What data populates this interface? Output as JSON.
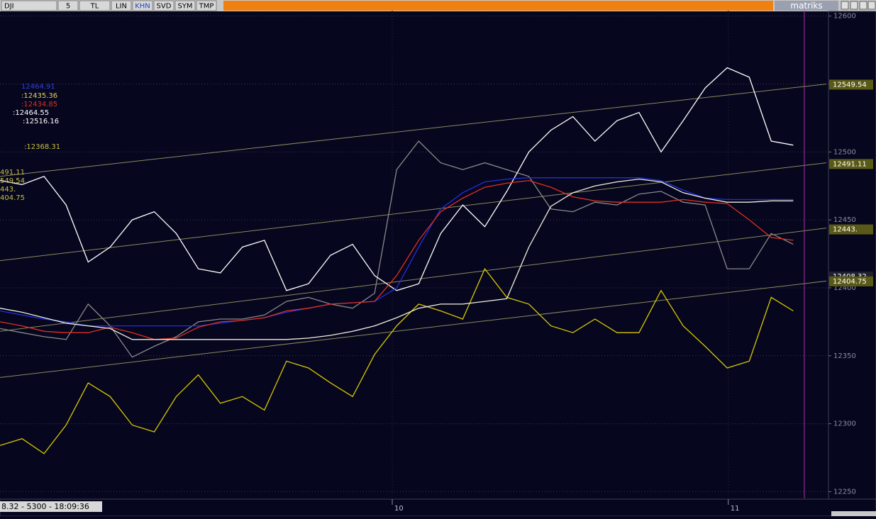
{
  "toolbar": {
    "buttons": [
      "DJI",
      "5",
      "TL",
      "LIN",
      "KHN",
      "SVD",
      "SYM",
      "TMP"
    ],
    "brand": "matriks"
  },
  "status": "8.32 - 5300 - 18:09:36",
  "readouts": [
    {
      "text": "12464.91",
      "color": "#3040e0"
    },
    {
      "text": ":12435.36",
      "color": "#e0d060"
    },
    {
      "text": ":12434.85",
      "color": "#e03020"
    },
    {
      "text": ":12464.55",
      "color": "#ffffff"
    },
    {
      "text": ":12516.16",
      "color": "#ffffff"
    },
    {
      "text": ":12368.31",
      "color": "#c8c040"
    },
    {
      "text": "491.11",
      "color": "#c8c040"
    },
    {
      "text": "549.54",
      "color": "#c8c040"
    },
    {
      "text": "443.",
      "color": "#c8c040"
    },
    {
      "text": "404.75",
      "color": "#c8c040"
    }
  ],
  "chart_data": {
    "type": "line",
    "grid": true,
    "xlim": [
      0,
      150
    ],
    "ylim": [
      12245,
      12604
    ],
    "yticks": [
      12250,
      12300,
      12350,
      12400,
      12450,
      12500,
      12550,
      12600
    ],
    "xticks": [
      {
        "value": 71.2,
        "label": "10"
      },
      {
        "value": 132.2,
        "label": "11"
      }
    ],
    "cursor_x": 146,
    "x": [
      0,
      4,
      8,
      12,
      16,
      20,
      24,
      28,
      32,
      36,
      40,
      44,
      48,
      52,
      56,
      60,
      64,
      68,
      72,
      76,
      80,
      84,
      88,
      92,
      96,
      100,
      104,
      108,
      112,
      116,
      120,
      124,
      128,
      132,
      136,
      140,
      144
    ],
    "series": [
      {
        "color": "#8a8a8a",
        "values": [
          12370,
          12367,
          12364,
          12362,
          12388,
          12372,
          12349,
          12357,
          12364,
          12375,
          12377,
          12377,
          12380,
          12390,
          12393,
          12388,
          12385,
          12396,
          12487,
          12508,
          12492,
          12487,
          12492,
          12487,
          12482,
          12458,
          12456,
          12463,
          12461,
          12469,
          12471,
          12463,
          12461,
          12414,
          12414,
          12440,
          12432
        ]
      },
      {
        "color": "#ffffff",
        "values": [
          12479,
          12476,
          12482,
          12461,
          12419,
          12430,
          12450,
          12456,
          12440,
          12414,
          12411,
          12430,
          12435,
          12398,
          12403,
          12424,
          12432,
          12409,
          12398,
          12403,
          12440,
          12461,
          12445,
          12471,
          12500,
          12516,
          12526,
          12508,
          12523,
          12529,
          12500,
          12523,
          12547,
          12562,
          12555,
          12508,
          12505
        ]
      },
      {
        "color": "#d8c800",
        "values": [
          12284,
          12289,
          12278,
          12299,
          12330,
          12320,
          12299,
          12294,
          12320,
          12336,
          12315,
          12320,
          12310,
          12346,
          12341,
          12330,
          12320,
          12351,
          12372,
          12388,
          12383,
          12377,
          12414,
          12393,
          12388,
          12372,
          12367,
          12377,
          12367,
          12367,
          12398,
          12372,
          12357,
          12341,
          12346,
          12393,
          12383
        ]
      },
      {
        "color": "#2030e0",
        "values": [
          12383,
          12380,
          12377,
          12375,
          12372,
          12372,
          12372,
          12372,
          12372,
          12372,
          12374,
          12376,
          12378,
          12382,
          12385,
          12388,
          12389,
          12390,
          12400,
          12430,
          12458,
          12470,
          12478,
          12480,
          12481,
          12481,
          12481,
          12481,
          12481,
          12481,
          12479,
          12472,
          12466,
          12465,
          12465,
          12465,
          12465
        ]
      },
      {
        "color": "#e03020",
        "values": [
          12375,
          12372,
          12368,
          12367,
          12367,
          12371,
          12367,
          12362,
          12363,
          12371,
          12375,
          12376,
          12378,
          12383,
          12385,
          12388,
          12389,
          12390,
          12409,
          12435,
          12456,
          12466,
          12474,
          12477,
          12479,
          12474,
          12467,
          12464,
          12463,
          12463,
          12463,
          12465,
          12463,
          12462,
          12450,
          12437,
          12435
        ]
      },
      {
        "color": "#f0f0e0",
        "values": [
          12385,
          12382,
          12378,
          12374,
          12372,
          12370,
          12362,
          12362,
          12362,
          12362,
          12362,
          12362,
          12362,
          12362,
          12363,
          12365,
          12368,
          12372,
          12378,
          12385,
          12388,
          12388,
          12390,
          12392,
          12430,
          12460,
          12470,
          12475,
          12478,
          12480,
          12478,
          12470,
          12466,
          12463,
          12463,
          12464,
          12464
        ]
      }
    ],
    "channels": [
      {
        "x": [
          0,
          150
        ],
        "values": [
          12482,
          12550
        ]
      },
      {
        "x": [
          0,
          150
        ],
        "values": [
          12420,
          12492
        ]
      },
      {
        "x": [
          0,
          150
        ],
        "values": [
          12368,
          12444
        ]
      },
      {
        "x": [
          0,
          150
        ],
        "values": [
          12334,
          12405
        ]
      }
    ],
    "markers": [
      {
        "value": 12549.54,
        "label": "12549.54",
        "color": "#5a5a18"
      },
      {
        "value": 12491.11,
        "label": "12491.11",
        "color": "#5a5a18"
      },
      {
        "value": 12443,
        "label": "12443.",
        "color": "#5a5a18"
      },
      {
        "value": 12408.32,
        "label": "12408.32",
        "color": "#202030"
      },
      {
        "value": 12404.75,
        "label": "12404.75",
        "color": "#5a5a18"
      }
    ]
  }
}
